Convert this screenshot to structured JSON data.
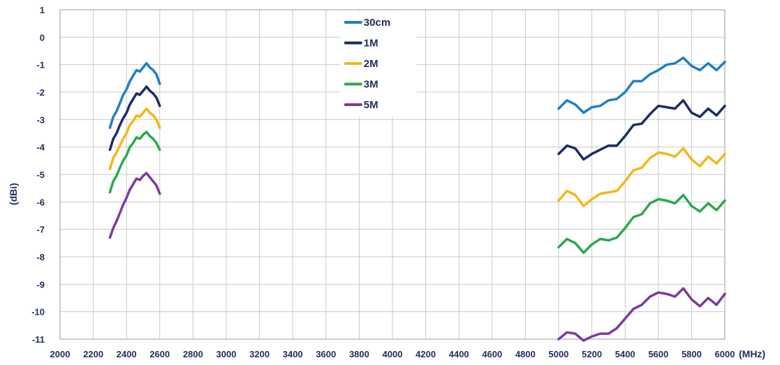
{
  "chart_data": {
    "type": "line",
    "title": "",
    "xlabel": "",
    "x_unit": "(MHz)",
    "ylabel": "(dBi)",
    "xlim": [
      2000,
      6000
    ],
    "ylim": [
      -11,
      1
    ],
    "x_ticks": [
      2000,
      2200,
      2400,
      2600,
      2800,
      3000,
      3200,
      3400,
      3600,
      3800,
      4000,
      4200,
      4400,
      4600,
      4800,
      5000,
      5200,
      5400,
      5600,
      5800,
      6000
    ],
    "y_ticks": [
      1,
      0,
      -1,
      -2,
      -3,
      -4,
      -5,
      -6,
      -7,
      -8,
      -9,
      -10,
      -11
    ],
    "grid": true,
    "legend_position": "top-center",
    "series": [
      {
        "name": "30cm",
        "color": "#1f7fc4",
        "segments": [
          [
            [
              2300,
              -3.3
            ],
            [
              2320,
              -2.9
            ],
            [
              2340,
              -2.7
            ],
            [
              2360,
              -2.4
            ],
            [
              2380,
              -2.1
            ],
            [
              2400,
              -1.9
            ],
            [
              2420,
              -1.6
            ],
            [
              2440,
              -1.4
            ],
            [
              2460,
              -1.2
            ],
            [
              2480,
              -1.25
            ],
            [
              2500,
              -1.1
            ],
            [
              2520,
              -0.95
            ],
            [
              2540,
              -1.1
            ],
            [
              2560,
              -1.2
            ],
            [
              2580,
              -1.35
            ],
            [
              2600,
              -1.7
            ]
          ],
          [
            [
              5000,
              -2.6
            ],
            [
              5050,
              -2.3
            ],
            [
              5100,
              -2.45
            ],
            [
              5150,
              -2.75
            ],
            [
              5200,
              -2.55
            ],
            [
              5250,
              -2.5
            ],
            [
              5300,
              -2.3
            ],
            [
              5350,
              -2.25
            ],
            [
              5400,
              -2.0
            ],
            [
              5450,
              -1.6
            ],
            [
              5500,
              -1.6
            ],
            [
              5550,
              -1.35
            ],
            [
              5600,
              -1.2
            ],
            [
              5650,
              -1.0
            ],
            [
              5700,
              -0.95
            ],
            [
              5750,
              -0.75
            ],
            [
              5800,
              -1.05
            ],
            [
              5850,
              -1.2
            ],
            [
              5900,
              -0.95
            ],
            [
              5950,
              -1.2
            ],
            [
              6000,
              -0.9
            ]
          ]
        ]
      },
      {
        "name": "1M",
        "color": "#1b2d63",
        "segments": [
          [
            [
              2300,
              -4.1
            ],
            [
              2320,
              -3.7
            ],
            [
              2340,
              -3.5
            ],
            [
              2360,
              -3.2
            ],
            [
              2380,
              -2.95
            ],
            [
              2400,
              -2.75
            ],
            [
              2420,
              -2.45
            ],
            [
              2440,
              -2.25
            ],
            [
              2460,
              -2.05
            ],
            [
              2480,
              -2.1
            ],
            [
              2500,
              -1.95
            ],
            [
              2520,
              -1.8
            ],
            [
              2540,
              -1.95
            ],
            [
              2560,
              -2.05
            ],
            [
              2580,
              -2.2
            ],
            [
              2600,
              -2.5
            ]
          ],
          [
            [
              5000,
              -4.25
            ],
            [
              5050,
              -3.95
            ],
            [
              5100,
              -4.05
            ],
            [
              5150,
              -4.45
            ],
            [
              5200,
              -4.25
            ],
            [
              5250,
              -4.1
            ],
            [
              5300,
              -3.95
            ],
            [
              5350,
              -3.95
            ],
            [
              5400,
              -3.6
            ],
            [
              5450,
              -3.2
            ],
            [
              5500,
              -3.15
            ],
            [
              5550,
              -2.8
            ],
            [
              5600,
              -2.5
            ],
            [
              5650,
              -2.55
            ],
            [
              5700,
              -2.6
            ],
            [
              5750,
              -2.3
            ],
            [
              5800,
              -2.75
            ],
            [
              5850,
              -2.9
            ],
            [
              5900,
              -2.6
            ],
            [
              5950,
              -2.85
            ],
            [
              6000,
              -2.5
            ]
          ]
        ]
      },
      {
        "name": "2M",
        "color": "#f4b718",
        "segments": [
          [
            [
              2300,
              -4.8
            ],
            [
              2320,
              -4.4
            ],
            [
              2340,
              -4.2
            ],
            [
              2360,
              -3.95
            ],
            [
              2380,
              -3.7
            ],
            [
              2400,
              -3.5
            ],
            [
              2420,
              -3.2
            ],
            [
              2440,
              -3.05
            ],
            [
              2460,
              -2.85
            ],
            [
              2480,
              -2.9
            ],
            [
              2500,
              -2.75
            ],
            [
              2520,
              -2.6
            ],
            [
              2540,
              -2.75
            ],
            [
              2560,
              -2.85
            ],
            [
              2580,
              -3.0
            ],
            [
              2600,
              -3.3
            ]
          ],
          [
            [
              5000,
              -5.95
            ],
            [
              5050,
              -5.6
            ],
            [
              5100,
              -5.75
            ],
            [
              5150,
              -6.15
            ],
            [
              5200,
              -5.9
            ],
            [
              5250,
              -5.7
            ],
            [
              5300,
              -5.65
            ],
            [
              5350,
              -5.6
            ],
            [
              5400,
              -5.25
            ],
            [
              5450,
              -4.85
            ],
            [
              5500,
              -4.75
            ],
            [
              5550,
              -4.4
            ],
            [
              5600,
              -4.2
            ],
            [
              5650,
              -4.25
            ],
            [
              5700,
              -4.35
            ],
            [
              5750,
              -4.05
            ],
            [
              5800,
              -4.45
            ],
            [
              5850,
              -4.7
            ],
            [
              5900,
              -4.35
            ],
            [
              5950,
              -4.6
            ],
            [
              6000,
              -4.25
            ]
          ]
        ]
      },
      {
        "name": "3M",
        "color": "#2ca84f",
        "segments": [
          [
            [
              2300,
              -5.65
            ],
            [
              2320,
              -5.25
            ],
            [
              2340,
              -5.05
            ],
            [
              2360,
              -4.75
            ],
            [
              2380,
              -4.5
            ],
            [
              2400,
              -4.3
            ],
            [
              2420,
              -4.0
            ],
            [
              2440,
              -3.85
            ],
            [
              2460,
              -3.65
            ],
            [
              2480,
              -3.7
            ],
            [
              2500,
              -3.55
            ],
            [
              2520,
              -3.45
            ],
            [
              2540,
              -3.6
            ],
            [
              2560,
              -3.7
            ],
            [
              2580,
              -3.85
            ],
            [
              2600,
              -4.1
            ]
          ],
          [
            [
              5000,
              -7.65
            ],
            [
              5050,
              -7.35
            ],
            [
              5100,
              -7.5
            ],
            [
              5150,
              -7.85
            ],
            [
              5200,
              -7.55
            ],
            [
              5250,
              -7.35
            ],
            [
              5300,
              -7.4
            ],
            [
              5350,
              -7.3
            ],
            [
              5400,
              -6.95
            ],
            [
              5450,
              -6.55
            ],
            [
              5500,
              -6.45
            ],
            [
              5550,
              -6.05
            ],
            [
              5600,
              -5.9
            ],
            [
              5650,
              -5.95
            ],
            [
              5700,
              -6.05
            ],
            [
              5750,
              -5.75
            ],
            [
              5800,
              -6.15
            ],
            [
              5850,
              -6.35
            ],
            [
              5900,
              -6.05
            ],
            [
              5950,
              -6.3
            ],
            [
              6000,
              -5.95
            ]
          ]
        ]
      },
      {
        "name": "5M",
        "color": "#7a3a9f",
        "segments": [
          [
            [
              2300,
              -7.3
            ],
            [
              2320,
              -6.95
            ],
            [
              2340,
              -6.7
            ],
            [
              2360,
              -6.4
            ],
            [
              2380,
              -6.1
            ],
            [
              2400,
              -5.85
            ],
            [
              2420,
              -5.55
            ],
            [
              2440,
              -5.35
            ],
            [
              2460,
              -5.15
            ],
            [
              2480,
              -5.2
            ],
            [
              2500,
              -5.05
            ],
            [
              2520,
              -4.95
            ],
            [
              2540,
              -5.1
            ],
            [
              2560,
              -5.25
            ],
            [
              2580,
              -5.4
            ],
            [
              2600,
              -5.7
            ]
          ],
          [
            [
              5000,
              -11.0
            ],
            [
              5050,
              -10.75
            ],
            [
              5100,
              -10.8
            ],
            [
              5150,
              -11.05
            ],
            [
              5200,
              -10.9
            ],
            [
              5250,
              -10.8
            ],
            [
              5300,
              -10.8
            ],
            [
              5350,
              -10.6
            ],
            [
              5400,
              -10.25
            ],
            [
              5450,
              -9.9
            ],
            [
              5500,
              -9.75
            ],
            [
              5550,
              -9.45
            ],
            [
              5600,
              -9.3
            ],
            [
              5650,
              -9.35
            ],
            [
              5700,
              -9.45
            ],
            [
              5750,
              -9.15
            ],
            [
              5800,
              -9.55
            ],
            [
              5850,
              -9.8
            ],
            [
              5900,
              -9.5
            ],
            [
              5950,
              -9.75
            ],
            [
              6000,
              -9.35
            ]
          ]
        ]
      }
    ]
  }
}
